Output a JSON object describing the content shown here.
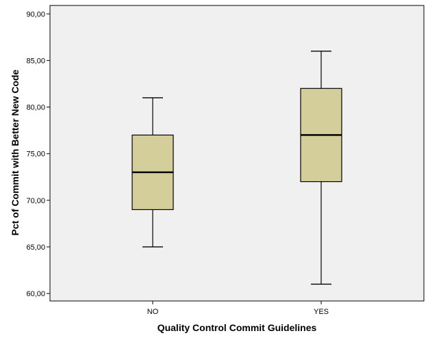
{
  "chart_data": {
    "type": "boxplot",
    "title": "",
    "xlabel": "Quality Control Commit Guidelines",
    "ylabel": "Pct of Commit with Better New Code",
    "categories": [
      "NO",
      "YES"
    ],
    "boxes": [
      {
        "category": "NO",
        "min": 65.0,
        "q1": 69.0,
        "median": 73.0,
        "q3": 77.0,
        "max": 81.0
      },
      {
        "category": "YES",
        "min": 61.0,
        "q1": 72.0,
        "median": 77.0,
        "q3": 82.0,
        "max": 86.0
      }
    ],
    "ylim": [
      59.2,
      90.9
    ],
    "yticks": [
      60,
      65,
      70,
      75,
      80,
      85,
      90
    ],
    "ytick_labels": [
      "60,00",
      "65,00",
      "70,00",
      "75,00",
      "80,00",
      "85,00",
      "90,00"
    ],
    "grid": false,
    "colors": {
      "plot_background": "#f0f0f0",
      "box_fill": "#d3ce9a",
      "box_stroke": "#000000",
      "axis": "#000000"
    }
  }
}
